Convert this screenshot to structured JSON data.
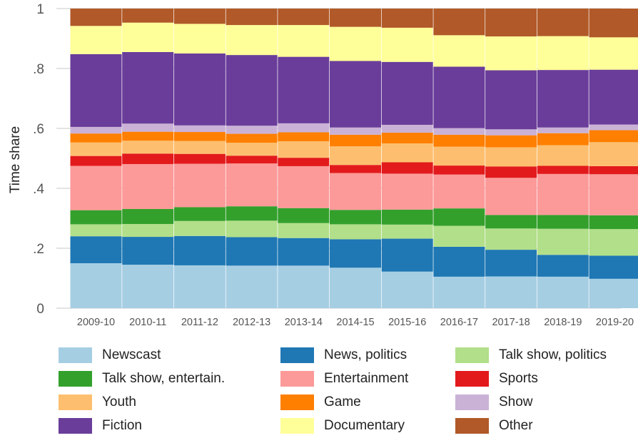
{
  "chart_data": {
    "type": "bar",
    "stacked": true,
    "ylabel": "Time share",
    "ylim": [
      0,
      1
    ],
    "yticks": [
      {
        "value": 0,
        "label": "0"
      },
      {
        "value": 0.2,
        "label": ".2"
      },
      {
        "value": 0.4,
        "label": ".4"
      },
      {
        "value": 0.6,
        "label": ".6"
      },
      {
        "value": 0.8,
        "label": ".8"
      },
      {
        "value": 1,
        "label": "1"
      }
    ],
    "grid": true,
    "legend_position": "bottom",
    "categories": [
      "2009-10",
      "2010-11",
      "2011-12",
      "2012-13",
      "2013-14",
      "2014-15",
      "2015-16",
      "2016-17",
      "2017-18",
      "2018-19",
      "2019-20"
    ],
    "series": [
      {
        "name": "Newscast",
        "color": "#a6cee3",
        "values": [
          0.15,
          0.145,
          0.143,
          0.142,
          0.142,
          0.135,
          0.122,
          0.105,
          0.106,
          0.105,
          0.098
        ]
      },
      {
        "name": "News, politics",
        "color": "#1f78b4",
        "values": [
          0.09,
          0.093,
          0.098,
          0.095,
          0.092,
          0.095,
          0.11,
          0.1,
          0.089,
          0.073,
          0.077
        ]
      },
      {
        "name": "Talk show, politics",
        "color": "#b2df8a",
        "values": [
          0.04,
          0.043,
          0.05,
          0.055,
          0.05,
          0.05,
          0.047,
          0.07,
          0.071,
          0.087,
          0.089
        ]
      },
      {
        "name": "Talk show, entertain.",
        "color": "#33a02c",
        "values": [
          0.047,
          0.05,
          0.046,
          0.048,
          0.05,
          0.048,
          0.05,
          0.058,
          0.045,
          0.046,
          0.046
        ]
      },
      {
        "name": "Entertainment",
        "color": "#fb9a99",
        "values": [
          0.148,
          0.15,
          0.145,
          0.143,
          0.14,
          0.123,
          0.12,
          0.113,
          0.124,
          0.137,
          0.137
        ]
      },
      {
        "name": "Sports",
        "color": "#e31a1c",
        "values": [
          0.033,
          0.035,
          0.033,
          0.026,
          0.028,
          0.027,
          0.038,
          0.03,
          0.038,
          0.027,
          0.027
        ]
      },
      {
        "name": "Youth",
        "color": "#fdbf6f",
        "values": [
          0.045,
          0.043,
          0.043,
          0.043,
          0.055,
          0.062,
          0.063,
          0.063,
          0.064,
          0.069,
          0.08
        ]
      },
      {
        "name": "Game",
        "color": "#ff7f00",
        "values": [
          0.03,
          0.03,
          0.03,
          0.03,
          0.03,
          0.039,
          0.036,
          0.04,
          0.04,
          0.04,
          0.04
        ]
      },
      {
        "name": "Show",
        "color": "#cab2d6",
        "values": [
          0.022,
          0.027,
          0.022,
          0.027,
          0.03,
          0.024,
          0.026,
          0.022,
          0.02,
          0.019,
          0.019
        ]
      },
      {
        "name": "Fiction",
        "color": "#6a3d9a",
        "values": [
          0.243,
          0.239,
          0.24,
          0.236,
          0.222,
          0.222,
          0.21,
          0.205,
          0.197,
          0.192,
          0.183
        ]
      },
      {
        "name": "Documentary",
        "color": "#ffff99",
        "values": [
          0.094,
          0.098,
          0.099,
          0.1,
          0.106,
          0.114,
          0.114,
          0.105,
          0.113,
          0.113,
          0.108
        ]
      },
      {
        "name": "Other",
        "color": "#b15928",
        "values": [
          0.058,
          0.047,
          0.051,
          0.055,
          0.055,
          0.061,
          0.064,
          0.089,
          0.093,
          0.092,
          0.096
        ]
      }
    ]
  }
}
